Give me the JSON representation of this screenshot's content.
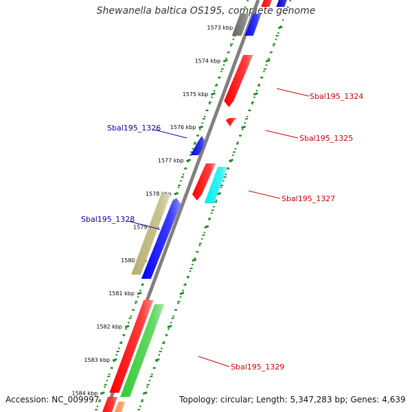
{
  "title": "Shewanella baltica OS195, complete genome",
  "accession_text": "Accession: NC_009997",
  "topology_text": "Topology: circular; Length: 5,347,283 bp; Genes: 4,639",
  "colors": {
    "ruler": "#228b22",
    "backbone": "#808080",
    "forward_label": "#cc0000",
    "reverse_label": "#0000aa"
  },
  "ticks": [
    {
      "label": "1573 kbp"
    },
    {
      "label": "1574 kbp"
    },
    {
      "label": "1575 kbp"
    },
    {
      "label": "1576 kbp"
    },
    {
      "label": "1577 kbp"
    },
    {
      "label": "1578 kbp"
    },
    {
      "label": "1579 kbp"
    },
    {
      "label": "1580 kbp"
    },
    {
      "label": "1581 kbp"
    },
    {
      "label": "1582 kbp"
    },
    {
      "label": "1583 kbp"
    },
    {
      "label": "1584 kbp"
    }
  ],
  "gene_labels": [
    {
      "text": "Sbal195_1324",
      "strand": "forward"
    },
    {
      "text": "Sbal195_1325",
      "strand": "forward"
    },
    {
      "text": "Sbal195_1326",
      "strand": "reverse"
    },
    {
      "text": "Sbal195_1327",
      "strand": "forward"
    },
    {
      "text": "Sbal195_1328",
      "strand": "reverse"
    },
    {
      "text": "Sbal195_1329",
      "strand": "forward"
    }
  ]
}
